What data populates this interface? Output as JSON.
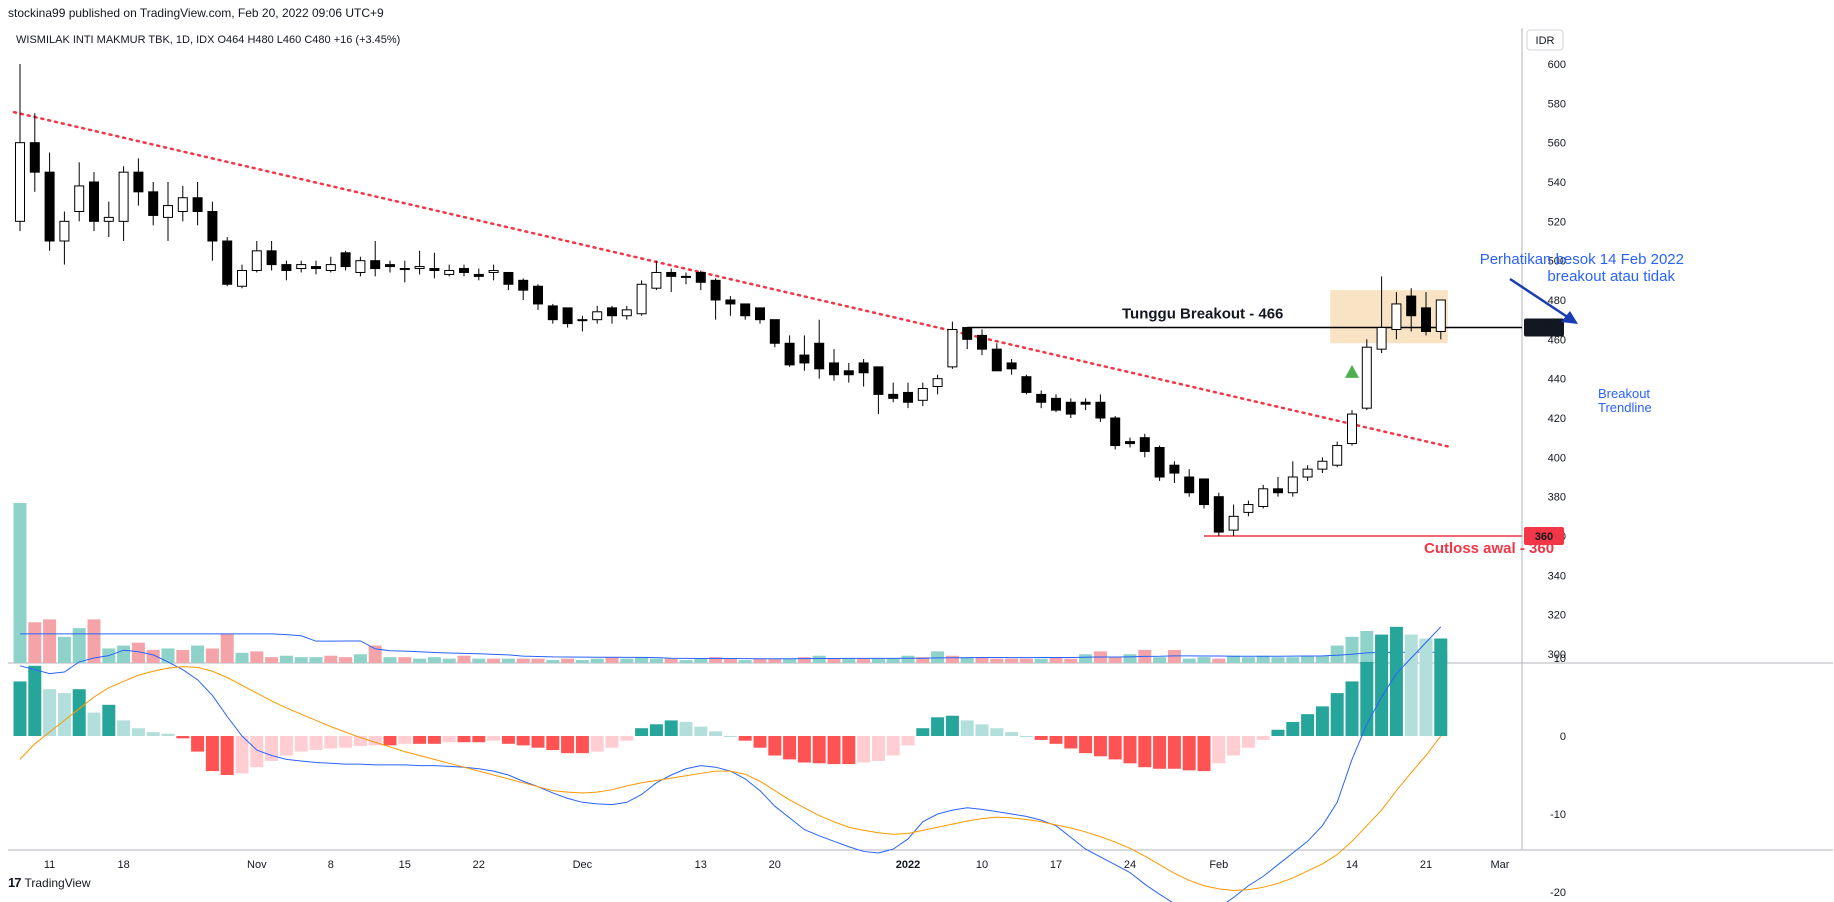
{
  "header": {
    "published_by": "stockina99 published on TradingView.com, Feb 20, 2022 09:06 UTC+9",
    "symbol_line": "WISMILAK INTI MAKMUR TBK, 1D, IDX  O464  H480  L460  C480  +16 (+3.45%)"
  },
  "footer": {
    "logo_text": "TradingView",
    "logo_mark": "17"
  },
  "price_axis": {
    "currency": "IDR",
    "badge_466": "466",
    "badge_360": "360"
  },
  "annotations": {
    "tunggu": "Tunggu Breakout - 466",
    "cutloss": "Cutloss awal  - 360",
    "perhatikan_1": "Perhatikan besok 14 Feb 2022",
    "perhatikan_2": "breakout atau tidak",
    "breakout_1": "Breakout",
    "breakout_2": "Trendline"
  },
  "colors": {
    "up": "#ffffff",
    "down": "#000000",
    "red": "#f23645",
    "blue": "#2962ff",
    "vol_up": "#8ed2ca",
    "vol_down": "#f4a4a8",
    "orange": "#ff9800",
    "hist_up_strong": "#26a69a",
    "hist_up_weak": "#b2dfdb",
    "hist_down_strong": "#ff5252",
    "hist_down_weak": "#ffcdd2"
  },
  "chart_data": {
    "type": "candlestick",
    "symbol": "WISMILAK INTI MAKMUR TBK",
    "interval": "1D",
    "exchange": "IDX",
    "ylim": [
      290,
      610
    ],
    "y_ticks": [
      300,
      320,
      340,
      360,
      380,
      400,
      420,
      440,
      460,
      480,
      500,
      520,
      540,
      560,
      580,
      600
    ],
    "x_labels": [
      {
        "label": "11",
        "i": 2
      },
      {
        "label": "18",
        "i": 7
      },
      {
        "label": "Nov",
        "i": 16
      },
      {
        "label": "8",
        "i": 21
      },
      {
        "label": "15",
        "i": 26
      },
      {
        "label": "22",
        "i": 31
      },
      {
        "label": "Dec",
        "i": 38
      },
      {
        "label": "13",
        "i": 46
      },
      {
        "label": "20",
        "i": 51
      },
      {
        "label": "2022",
        "i": 60
      },
      {
        "label": "10",
        "i": 65
      },
      {
        "label": "17",
        "i": 70
      },
      {
        "label": "24",
        "i": 75
      },
      {
        "label": "Feb",
        "i": 81
      },
      {
        "label": "14",
        "i": 90
      },
      {
        "label": "21",
        "i": 95
      },
      {
        "label": "Mar",
        "i": 100
      }
    ],
    "candles": [
      [
        520,
        560,
        515,
        600
      ],
      [
        560,
        545,
        535,
        575
      ],
      [
        545,
        510,
        505,
        555
      ],
      [
        510,
        520,
        498,
        525
      ],
      [
        525,
        538,
        520,
        550
      ],
      [
        540,
        520,
        515,
        545
      ],
      [
        520,
        522,
        512,
        530
      ],
      [
        520,
        545,
        510,
        548
      ],
      [
        545,
        535,
        528,
        552
      ],
      [
        535,
        523,
        518,
        540
      ],
      [
        522,
        528,
        510,
        540
      ],
      [
        525,
        532,
        520,
        538
      ],
      [
        532,
        525,
        518,
        540
      ],
      [
        525,
        510,
        500,
        530
      ],
      [
        510,
        488,
        487,
        512
      ],
      [
        487,
        495,
        486,
        498
      ],
      [
        495,
        505,
        494,
        510
      ],
      [
        505,
        498,
        495,
        510
      ],
      [
        498,
        495,
        490,
        500
      ],
      [
        496,
        498,
        494,
        500
      ],
      [
        497,
        496,
        493,
        500
      ],
      [
        495,
        498,
        494,
        502
      ],
      [
        504,
        497,
        495,
        505
      ],
      [
        494,
        500,
        492,
        502
      ],
      [
        500,
        496,
        492,
        510
      ],
      [
        498,
        497,
        494,
        500
      ],
      [
        496,
        496,
        489,
        500
      ],
      [
        496,
        497,
        493,
        505
      ],
      [
        496,
        495,
        491,
        504
      ],
      [
        493,
        495,
        492,
        498
      ],
      [
        496,
        494,
        492,
        498
      ],
      [
        493,
        492,
        490,
        496
      ],
      [
        494,
        495,
        490,
        498
      ],
      [
        494,
        488,
        485,
        494
      ],
      [
        490,
        485,
        480,
        491
      ],
      [
        487,
        478,
        475,
        488
      ],
      [
        477,
        470,
        468,
        478
      ],
      [
        476,
        468,
        466,
        476
      ],
      [
        470,
        470,
        464,
        472
      ],
      [
        470,
        474,
        468,
        477
      ],
      [
        476,
        472,
        468,
        477
      ],
      [
        472,
        475,
        470,
        477
      ],
      [
        473,
        488,
        472,
        490
      ],
      [
        486,
        494,
        485,
        500
      ],
      [
        494,
        492,
        484,
        496
      ],
      [
        492,
        492,
        488,
        494
      ],
      [
        494,
        489,
        485,
        495
      ],
      [
        490,
        480,
        470,
        491
      ],
      [
        480,
        478,
        472,
        482
      ],
      [
        478,
        472,
        470,
        478
      ],
      [
        476,
        470,
        468,
        476
      ],
      [
        470,
        458,
        456,
        470
      ],
      [
        458,
        447,
        446,
        462
      ],
      [
        452,
        448,
        444,
        462
      ],
      [
        458,
        445,
        440,
        470
      ],
      [
        448,
        442,
        439,
        455
      ],
      [
        444,
        442,
        438,
        448
      ],
      [
        448,
        443,
        436,
        450
      ],
      [
        446,
        432,
        422,
        446
      ],
      [
        432,
        430,
        428,
        438
      ],
      [
        433,
        428,
        425,
        438
      ],
      [
        429,
        435,
        426,
        438
      ],
      [
        436,
        440,
        432,
        442
      ],
      [
        446,
        465,
        445,
        469
      ],
      [
        466,
        460,
        455,
        466
      ],
      [
        462,
        455,
        452,
        465
      ],
      [
        455,
        444,
        444,
        458
      ],
      [
        448,
        445,
        442,
        450
      ],
      [
        441,
        433,
        432,
        442
      ],
      [
        432,
        428,
        425,
        434
      ],
      [
        430,
        424,
        423,
        432
      ],
      [
        428,
        422,
        420,
        430
      ],
      [
        428,
        427,
        424,
        430
      ],
      [
        428,
        420,
        418,
        432
      ],
      [
        420,
        406,
        404,
        421
      ],
      [
        408,
        407,
        405,
        410
      ],
      [
        410,
        403,
        400,
        412
      ],
      [
        405,
        390,
        388,
        406
      ],
      [
        396,
        392,
        387,
        398
      ],
      [
        390,
        382,
        380,
        394
      ],
      [
        389,
        376,
        374,
        389
      ],
      [
        380,
        362,
        360,
        382
      ],
      [
        363,
        370,
        360,
        376
      ],
      [
        372,
        376,
        370,
        378
      ],
      [
        375,
        384,
        374,
        386
      ],
      [
        384,
        382,
        380,
        390
      ],
      [
        382,
        390,
        380,
        398
      ],
      [
        390,
        394,
        388,
        396
      ],
      [
        394,
        398,
        392,
        400
      ],
      [
        396,
        406,
        395,
        408
      ],
      [
        407,
        422,
        406,
        424
      ],
      [
        425,
        456,
        424,
        460
      ],
      [
        455,
        466,
        453,
        492
      ],
      [
        465,
        478,
        460,
        484
      ],
      [
        482,
        472,
        464,
        486
      ],
      [
        476,
        464,
        462,
        484
      ],
      [
        464,
        480,
        460,
        480
      ]
    ],
    "volume_scale": 80,
    "volume_max": 110,
    "volume": [
      [
        110,
        1
      ],
      [
        28,
        -1
      ],
      [
        30,
        -1
      ],
      [
        18,
        1
      ],
      [
        24,
        1
      ],
      [
        30,
        -1
      ],
      [
        10,
        1
      ],
      [
        12,
        1
      ],
      [
        14,
        -1
      ],
      [
        9,
        -1
      ],
      [
        10,
        1
      ],
      [
        9,
        -1
      ],
      [
        12,
        1
      ],
      [
        10,
        -1
      ],
      [
        20,
        -1
      ],
      [
        7,
        1
      ],
      [
        8,
        -1
      ],
      [
        4,
        -1
      ],
      [
        5,
        1
      ],
      [
        4,
        1
      ],
      [
        4,
        1
      ],
      [
        5,
        -1
      ],
      [
        4,
        -1
      ],
      [
        6,
        1
      ],
      [
        12,
        -1
      ],
      [
        4,
        1
      ],
      [
        4,
        -1
      ],
      [
        3,
        1
      ],
      [
        4,
        1
      ],
      [
        3,
        1
      ],
      [
        5,
        -1
      ],
      [
        3,
        1
      ],
      [
        3,
        -1
      ],
      [
        3,
        1
      ],
      [
        3,
        -1
      ],
      [
        3,
        -1
      ],
      [
        2,
        1
      ],
      [
        3,
        -1
      ],
      [
        2,
        1
      ],
      [
        3,
        1
      ],
      [
        4,
        -1
      ],
      [
        3,
        1
      ],
      [
        4,
        1
      ],
      [
        3,
        1
      ],
      [
        3,
        -1
      ],
      [
        2,
        1
      ],
      [
        3,
        1
      ],
      [
        4,
        -1
      ],
      [
        3,
        -1
      ],
      [
        2,
        1
      ],
      [
        3,
        -1
      ],
      [
        3,
        -1
      ],
      [
        3,
        1
      ],
      [
        4,
        -1
      ],
      [
        5,
        1
      ],
      [
        3,
        -1
      ],
      [
        3,
        1
      ],
      [
        3,
        -1
      ],
      [
        3,
        1
      ],
      [
        3,
        1
      ],
      [
        5,
        1
      ],
      [
        4,
        -1
      ],
      [
        8,
        1
      ],
      [
        5,
        -1
      ],
      [
        4,
        1
      ],
      [
        4,
        -1
      ],
      [
        3,
        -1
      ],
      [
        3,
        -1
      ],
      [
        3,
        -1
      ],
      [
        3,
        1
      ],
      [
        4,
        -1
      ],
      [
        3,
        -1
      ],
      [
        6,
        1
      ],
      [
        8,
        -1
      ],
      [
        4,
        -1
      ],
      [
        6,
        1
      ],
      [
        9,
        -1
      ],
      [
        4,
        1
      ],
      [
        9,
        -1
      ],
      [
        3,
        1
      ],
      [
        4,
        1
      ],
      [
        3,
        -1
      ],
      [
        5,
        1
      ],
      [
        4,
        1
      ],
      [
        5,
        1
      ],
      [
        4,
        1
      ],
      [
        4,
        1
      ],
      [
        5,
        1
      ],
      [
        5,
        1
      ],
      [
        12,
        1
      ],
      [
        18,
        1
      ],
      [
        22,
        1
      ],
      [
        12,
        1
      ],
      [
        8,
        -1
      ],
      [
        8,
        -1
      ],
      [
        6,
        1
      ],
      [
        7,
        1
      ]
    ],
    "volume_ma_end": [
      4,
      4,
      6,
      8,
      8
    ],
    "macd": {
      "ylim": [
        -23,
        17
      ],
      "y_ticks": [
        10,
        0,
        -10,
        -20
      ],
      "macd_line": [
        9,
        8.5,
        8,
        8.2,
        9.5,
        10,
        10.3,
        11,
        10.8,
        10.4,
        9.5,
        8.5,
        7.2,
        5.2,
        2.5,
        0,
        -1.8,
        -2.5,
        -3,
        -3.2,
        -3.4,
        -3.5,
        -3.6,
        -3.6,
        -3.7,
        -3.7,
        -3.7,
        -3.8,
        -3.8,
        -3.9,
        -4,
        -4.2,
        -4.5,
        -5,
        -5.8,
        -6.5,
        -7.3,
        -8,
        -8.5,
        -8.7,
        -8.8,
        -8.5,
        -7.5,
        -6,
        -5,
        -4.2,
        -3.8,
        -4,
        -4.5,
        -5.5,
        -7,
        -9,
        -10.5,
        -12,
        -12.8,
        -13.5,
        -14.2,
        -14.8,
        -15,
        -14.5,
        -13.2,
        -11,
        -10,
        -9.5,
        -9.2,
        -9.4,
        -9.7,
        -10,
        -10.3,
        -10.8,
        -11.5,
        -13,
        -14.5,
        -15.5,
        -16.5,
        -17.5,
        -19,
        -20.3,
        -21.5,
        -22.2,
        -22.5,
        -22,
        -20.7,
        -19.2,
        -18,
        -16.5,
        -15,
        -13.5,
        -11.5,
        -8.5,
        -3,
        1.5,
        5,
        8,
        10,
        12,
        14
      ],
      "signal_line": [
        -3,
        -1,
        0.5,
        2,
        3.5,
        5,
        6.2,
        7,
        7.8,
        8.3,
        8.7,
        8.9,
        8.8,
        8.3,
        7.5,
        6.5,
        5.5,
        4.5,
        3.6,
        2.8,
        2,
        1.2,
        0.5,
        -0.2,
        -0.8,
        -1.4,
        -2,
        -2.5,
        -3,
        -3.5,
        -4,
        -4.5,
        -5,
        -5.5,
        -6,
        -6.5,
        -7,
        -7.2,
        -7.3,
        -7.2,
        -6.9,
        -6.4,
        -6,
        -5.7,
        -5.4,
        -5.1,
        -4.8,
        -4.5,
        -4.5,
        -4.9,
        -5.8,
        -7,
        -8.2,
        -9.2,
        -10.2,
        -11,
        -11.7,
        -12.1,
        -12.4,
        -12.6,
        -12.5,
        -12.1,
        -11.7,
        -11.3,
        -10.9,
        -10.6,
        -10.4,
        -10.5,
        -10.7,
        -11,
        -11.4,
        -11.8,
        -12.3,
        -12.9,
        -13.6,
        -14.4,
        -15.4,
        -16.5,
        -17.6,
        -18.5,
        -19.2,
        -19.6,
        -19.8,
        -19.7,
        -19.4,
        -18.9,
        -18.2,
        -17.3,
        -16.4,
        -15.2,
        -13.5,
        -11.5,
        -9.5,
        -7,
        -4.7,
        -2.5,
        0
      ],
      "histogram": [
        7,
        9,
        6,
        5.5,
        6,
        3,
        4,
        2,
        1,
        0.5,
        0.3,
        -0.3,
        -2,
        -4.5,
        -5,
        -4.8,
        -4,
        -3.2,
        -2.5,
        -2,
        -1.8,
        -1.6,
        -1.5,
        -1.3,
        -1.2,
        -1.2,
        -1,
        -1,
        -1,
        -0.8,
        -0.8,
        -0.8,
        -0.6,
        -1,
        -1.2,
        -1.5,
        -1.8,
        -2.2,
        -2.2,
        -2,
        -1.5,
        -0.6,
        1,
        1.5,
        2,
        1.8,
        1.2,
        0.6,
        0,
        -0.6,
        -1.5,
        -2.5,
        -3,
        -3.4,
        -3.5,
        -3.6,
        -3.6,
        -3.4,
        -3.2,
        -2.5,
        -1.2,
        1,
        2.4,
        2.6,
        2,
        1.5,
        1,
        0.5,
        0,
        -0.5,
        -1,
        -1.6,
        -2.2,
        -2.6,
        -3,
        -3.5,
        -4,
        -4.2,
        -4.2,
        -4.4,
        -4.5,
        -3.5,
        -2.5,
        -1.5,
        -0.5,
        0.8,
        1.8,
        2.8,
        3.8,
        5.5,
        7,
        9.5,
        13,
        14,
        13,
        12.5,
        12.5
      ]
    },
    "trendline": {
      "from": {
        "i": -0.4,
        "price": 575.5
      },
      "to": {
        "i": 96.5,
        "price": 405.5
      }
    },
    "levels": [
      {
        "price": 466,
        "label": "Tunggu Breakout - 466"
      },
      {
        "price": 360,
        "label": "Cutloss awal  - 360"
      }
    ]
  }
}
